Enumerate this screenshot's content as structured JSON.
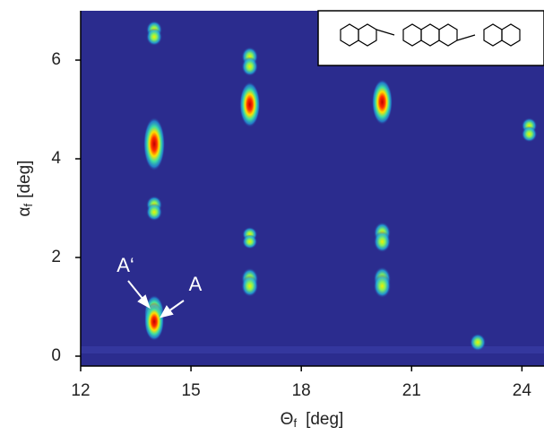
{
  "chart_data": {
    "type": "spot-map",
    "x_label": {
      "symbol": "Θ",
      "subscript": "f",
      "unit": "[deg]"
    },
    "y_label": {
      "symbol": "α",
      "subscript": "f",
      "unit": "[deg]"
    },
    "xlim": [
      12,
      24.6
    ],
    "ylim": [
      -0.2,
      7
    ],
    "xticks": [
      12,
      15,
      18,
      21,
      24
    ],
    "yticks": [
      0,
      2,
      4,
      6
    ],
    "background": "#2b2c8e",
    "x": [
      14.0,
      14.0,
      14.0,
      14.0,
      14.0,
      14.0,
      14.0,
      16.6,
      16.6,
      16.6,
      16.6,
      16.6,
      16.6,
      16.6,
      20.2,
      20.2,
      20.2,
      20.2,
      20.2,
      22.8,
      24.2,
      24.2
    ],
    "values": [
      6.62,
      6.47,
      4.3,
      3.07,
      2.92,
      0.85,
      0.7,
      6.07,
      5.87,
      5.1,
      2.47,
      2.32,
      1.57,
      1.42,
      5.15,
      2.5,
      2.32,
      1.57,
      1.42,
      0.28,
      4.67,
      4.5
    ],
    "intensity": [
      0.4,
      0.4,
      1.0,
      0.4,
      0.4,
      0.8,
      0.8,
      0.45,
      0.45,
      0.9,
      0.3,
      0.3,
      0.5,
      0.5,
      0.9,
      0.5,
      0.5,
      0.55,
      0.55,
      0.4,
      0.35,
      0.35
    ],
    "annotations": [
      "A‘",
      "A"
    ]
  }
}
